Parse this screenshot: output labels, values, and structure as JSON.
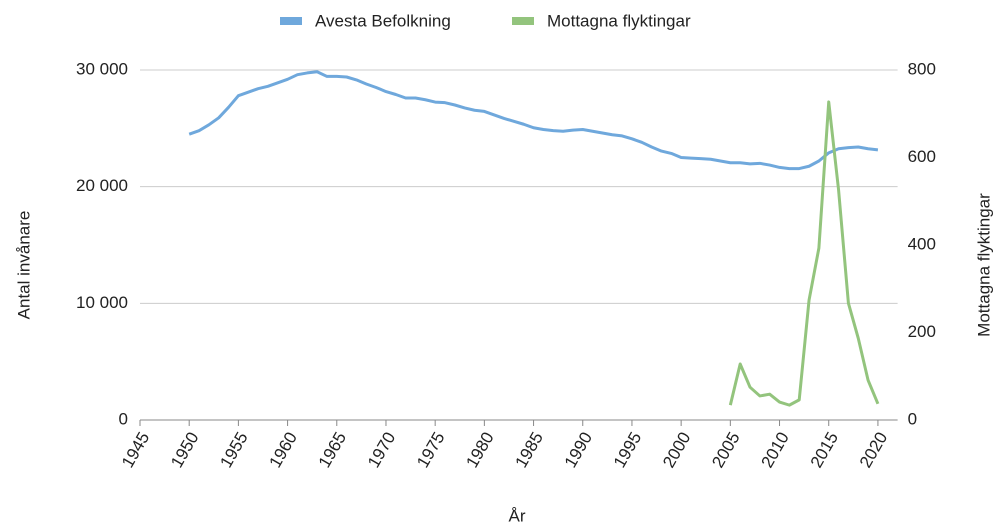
{
  "chart_data": {
    "type": "line",
    "x": [
      1950,
      1951,
      1952,
      1953,
      1954,
      1955,
      1956,
      1957,
      1958,
      1959,
      1960,
      1961,
      1962,
      1963,
      1964,
      1965,
      1966,
      1967,
      1968,
      1969,
      1970,
      1971,
      1972,
      1973,
      1974,
      1975,
      1976,
      1977,
      1978,
      1979,
      1980,
      1981,
      1982,
      1983,
      1984,
      1985,
      1986,
      1987,
      1988,
      1989,
      1990,
      1991,
      1992,
      1993,
      1994,
      1995,
      1996,
      1997,
      1998,
      1999,
      2000,
      2001,
      2002,
      2003,
      2004,
      2005,
      2006,
      2007,
      2008,
      2009,
      2010,
      2011,
      2012,
      2013,
      2014,
      2015,
      2016,
      2017,
      2018,
      2019,
      2020
    ],
    "series": [
      {
        "name": "Avesta Befolkning",
        "color": "#6fa8dc",
        "values": [
          24500,
          24800,
          25300,
          25900,
          26800,
          27800,
          28100,
          28400,
          28600,
          28900,
          29200,
          29600,
          29750,
          29850,
          29450,
          29450,
          29400,
          29150,
          28800,
          28500,
          28150,
          27900,
          27600,
          27600,
          27450,
          27250,
          27200,
          27000,
          26750,
          26550,
          26450,
          26150,
          25850,
          25600,
          25350,
          25050,
          24900,
          24800,
          24750,
          24850,
          24900,
          24750,
          24600,
          24450,
          24350,
          24100,
          23800,
          23400,
          23050,
          22850,
          22500,
          22450,
          22400,
          22350,
          22200,
          22050,
          22050,
          21950,
          22000,
          21850,
          21650,
          21550,
          21550,
          21750,
          22200,
          22900,
          23250,
          23350,
          23400,
          23250,
          23150
        ]
      },
      {
        "name": "Mottagna flyktingar",
        "color": "#93c47d",
        "axis": "y2",
        "values": [
          null,
          null,
          null,
          null,
          null,
          null,
          null,
          null,
          null,
          null,
          null,
          null,
          null,
          null,
          null,
          null,
          null,
          null,
          null,
          null,
          null,
          null,
          null,
          null,
          null,
          null,
          null,
          null,
          null,
          null,
          null,
          null,
          null,
          null,
          null,
          null,
          null,
          null,
          null,
          null,
          null,
          null,
          null,
          null,
          null,
          null,
          null,
          null,
          null,
          null,
          null,
          null,
          null,
          null,
          null,
          34,
          128,
          75,
          55,
          59,
          41,
          34,
          46,
          274,
          393,
          727,
          526,
          267,
          187,
          91,
          37
        ]
      }
    ],
    "xlabel": "År",
    "ylabel": "Antal invånare",
    "y2label": "Mottagna flyktingar",
    "xlim": [
      1945,
      2022
    ],
    "xticks": [
      1945,
      1950,
      1955,
      1960,
      1965,
      1970,
      1975,
      1980,
      1985,
      1990,
      1995,
      2000,
      2005,
      2010,
      2015,
      2020
    ],
    "ylim": [
      0,
      30000
    ],
    "yticks": [
      0,
      {
        "value": 10000,
        "label": "10 000"
      },
      {
        "value": 20000,
        "label": "20 000"
      },
      {
        "value": 30000,
        "label": "30 000"
      }
    ],
    "y2lim": [
      0,
      800
    ],
    "y2ticks": [
      0,
      200,
      400,
      600,
      800
    ],
    "grid": true,
    "legend": "top"
  }
}
